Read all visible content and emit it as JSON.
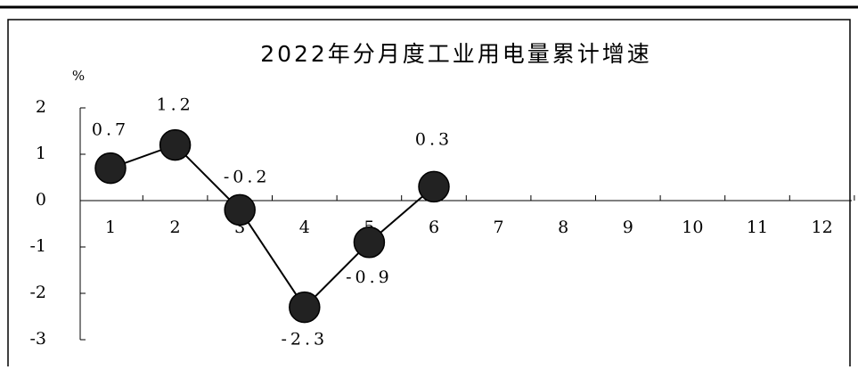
{
  "chart_data": {
    "type": "line",
    "title": "2022年分月度工业用电量累计增速",
    "y_label": "%",
    "categories": [
      "1",
      "2",
      "3",
      "4",
      "5",
      "6",
      "7",
      "8",
      "9",
      "10",
      "11",
      "12"
    ],
    "series": [
      {
        "name": "工业用电量累计增速",
        "color": "#000000",
        "values": [
          0.7,
          1.2,
          -0.2,
          -2.3,
          -0.9,
          0.3,
          null,
          null,
          null,
          null,
          null,
          null
        ]
      }
    ],
    "ylim": [
      -3,
      2
    ],
    "yticks": [
      -3,
      -2,
      -1,
      0,
      1,
      2
    ],
    "grid": false,
    "legend": false
  }
}
